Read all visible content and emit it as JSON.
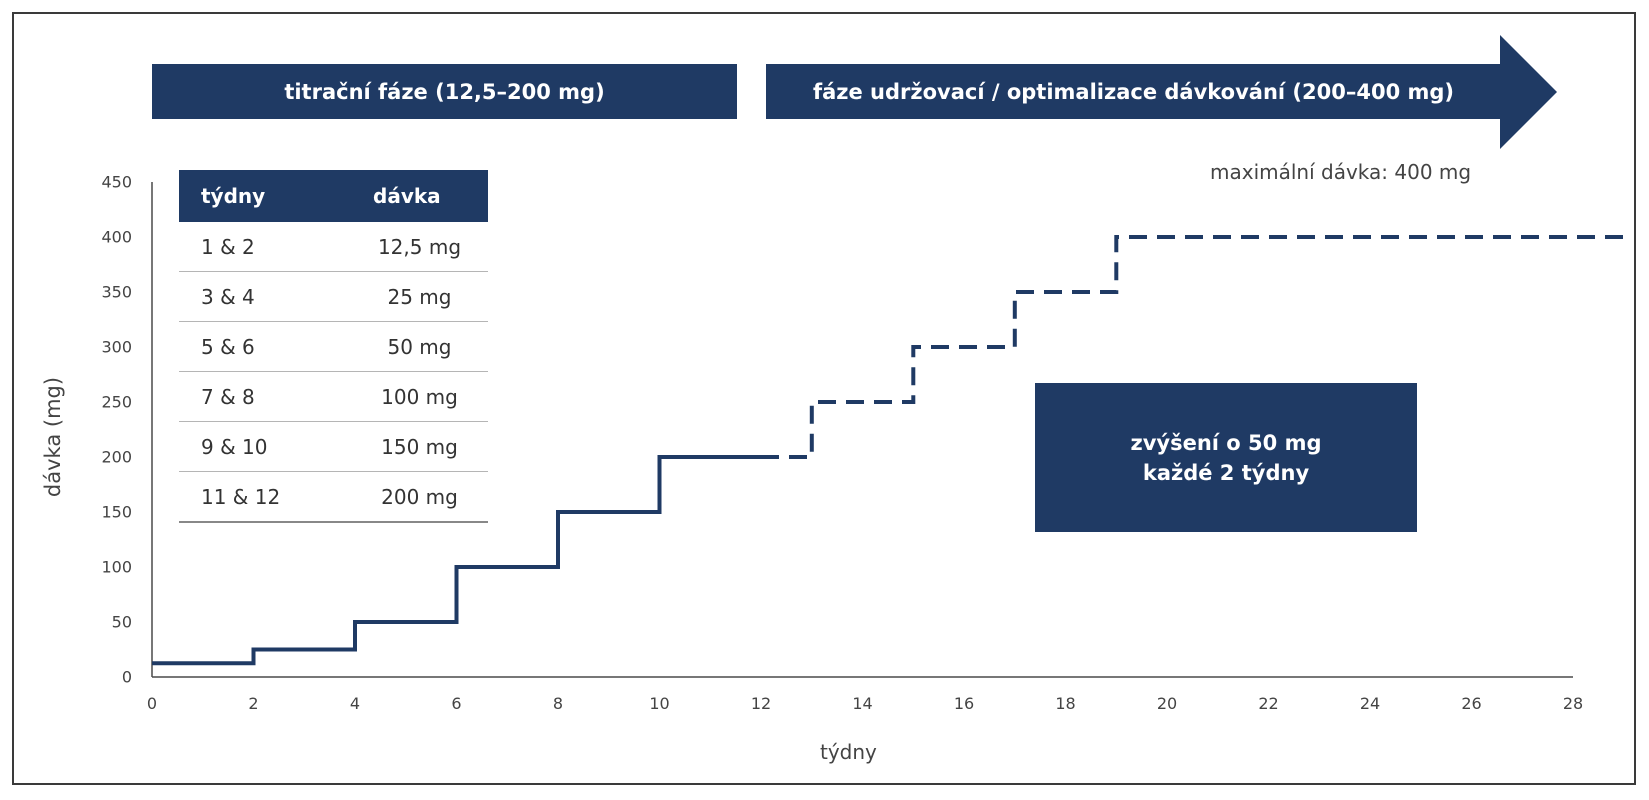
{
  "phases": {
    "titration": "titrační fáze (12,5–200 mg)",
    "maintenance": "fáze udržovací / optimalizace dávkování (200–400 mg)"
  },
  "max_dose_label": "maximální dávka: 400 mg",
  "increase_box": {
    "line1": "zvýšení o 50 mg",
    "line2": "každé 2 týdny"
  },
  "dose_table": {
    "header_weeks": "týdny",
    "header_dose": "dávka",
    "rows": [
      {
        "weeks": "1 & 2",
        "dose": "12,5 mg"
      },
      {
        "weeks": "3 & 4",
        "dose": "25 mg"
      },
      {
        "weeks": "5 & 6",
        "dose": "50 mg"
      },
      {
        "weeks": "7 & 8",
        "dose": "100 mg"
      },
      {
        "weeks": "9 & 10",
        "dose": "150 mg"
      },
      {
        "weeks": "11 & 12",
        "dose": "200 mg"
      }
    ]
  },
  "colors": {
    "navy": "#1f3a64",
    "axis": "#4a4a4a",
    "text": "#444444"
  },
  "chart_data": {
    "type": "line",
    "xlabel": "týdny",
    "ylabel": "dávka (mg)",
    "xlim": [
      0,
      28
    ],
    "ylim": [
      0,
      450
    ],
    "xticks": [
      0,
      2,
      4,
      6,
      8,
      10,
      12,
      14,
      16,
      18,
      20,
      22,
      24,
      26,
      28
    ],
    "yticks": [
      0,
      50,
      100,
      150,
      200,
      250,
      300,
      350,
      400,
      450
    ],
    "legend": "none",
    "grid": false,
    "series": [
      {
        "style": "solid",
        "step": true,
        "x": [
          0,
          2,
          2,
          4,
          4,
          6,
          6,
          8,
          8,
          10,
          10,
          12
        ],
        "y": [
          12.5,
          12.5,
          25,
          25,
          50,
          50,
          100,
          100,
          150,
          150,
          200,
          200
        ]
      },
      {
        "style": "dashed",
        "step": true,
        "x": [
          12,
          13,
          13,
          15,
          15,
          17,
          17,
          19,
          19,
          29
        ],
        "y": [
          200,
          200,
          250,
          250,
          300,
          300,
          350,
          350,
          400,
          400
        ]
      }
    ]
  }
}
